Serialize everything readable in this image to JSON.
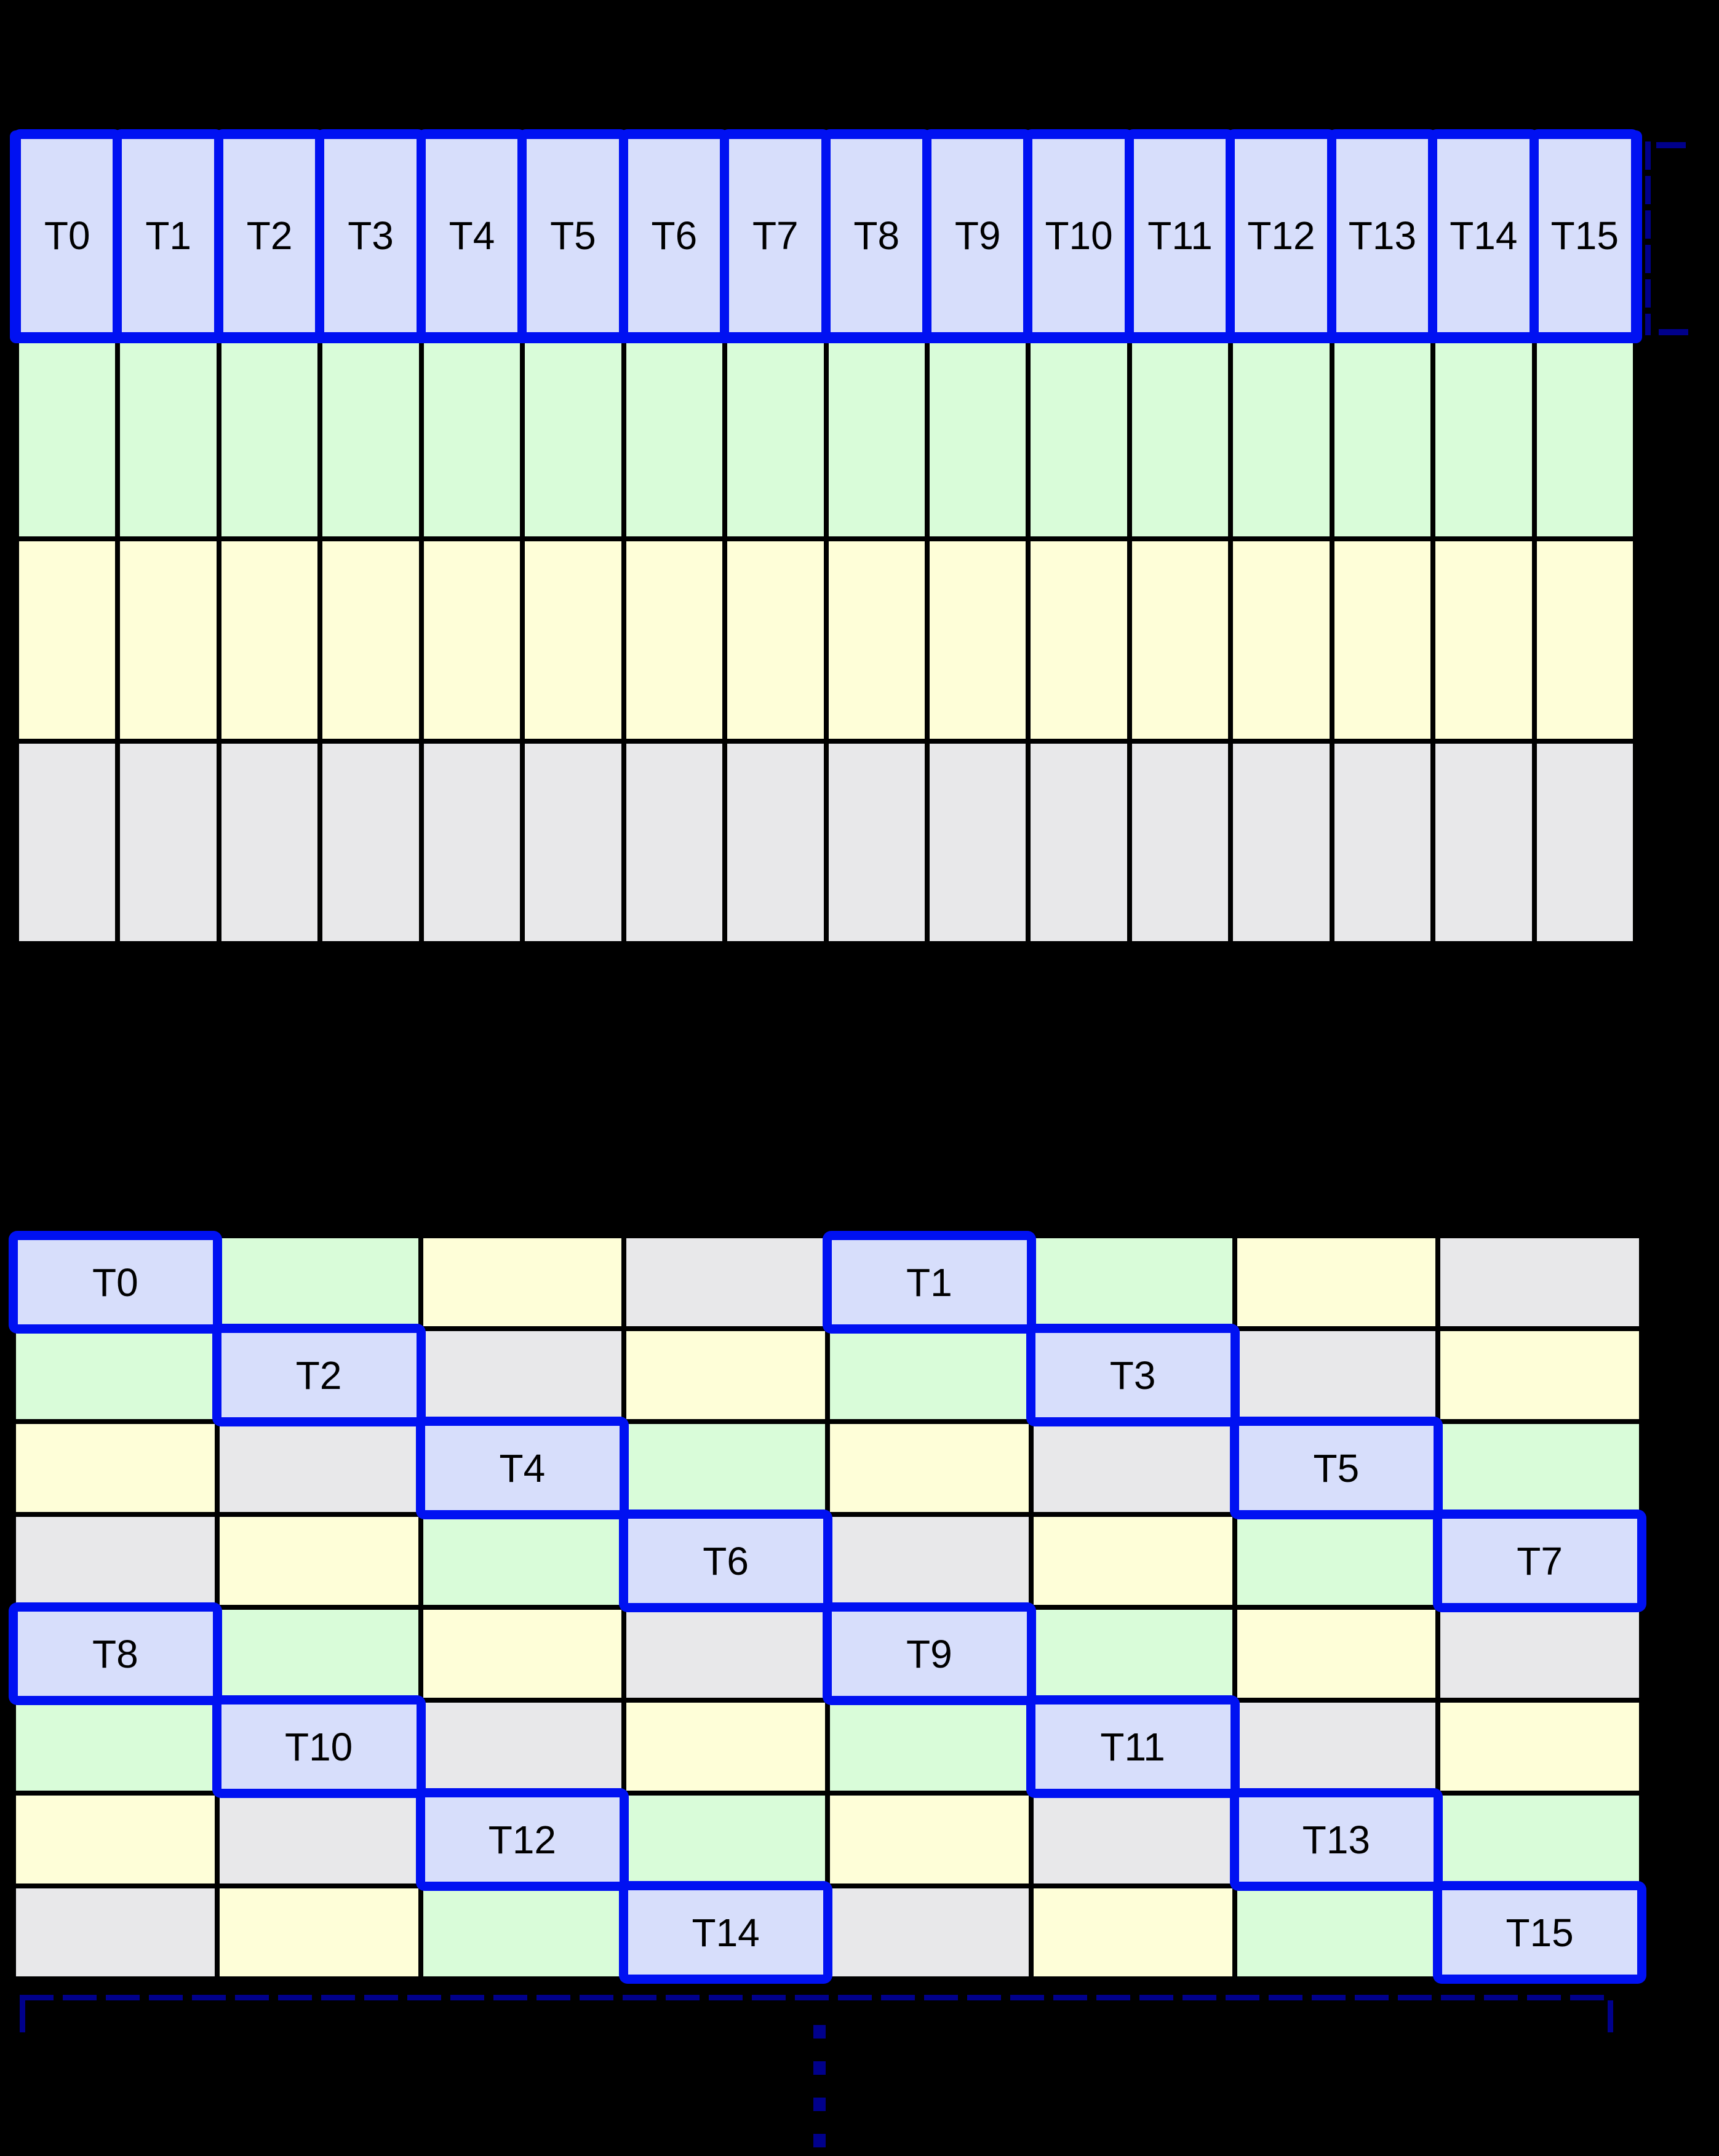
{
  "diagram": {
    "background": "#000000",
    "palette": {
      "blue": "#D7DEFB",
      "green": "#D9FCD9",
      "yellow": "#FEFED8",
      "gray": "#E8E8EA"
    },
    "accents": {
      "warp_border": "#0011F2",
      "bracket": "#00008B",
      "grid_line": "#000000",
      "label_color": "#000000"
    },
    "top_grid": {
      "columns": 16,
      "rows": 4,
      "threads": [
        "T0",
        "T1",
        "T2",
        "T3",
        "T4",
        "T5",
        "T6",
        "T7",
        "T8",
        "T9",
        "T10",
        "T11",
        "T12",
        "T13",
        "T14",
        "T15"
      ],
      "thread_row_color": "blue",
      "data_rows": [
        "green",
        "yellow",
        "gray"
      ]
    },
    "bottom_grid": {
      "columns": 8,
      "rows": [
        [
          {
            "color": "blue",
            "label": "T0"
          },
          {
            "color": "green"
          },
          {
            "color": "yellow"
          },
          {
            "color": "gray"
          },
          {
            "color": "blue",
            "label": "T1"
          },
          {
            "color": "green"
          },
          {
            "color": "yellow"
          },
          {
            "color": "gray"
          }
        ],
        [
          {
            "color": "green"
          },
          {
            "color": "blue",
            "label": "T2"
          },
          {
            "color": "gray"
          },
          {
            "color": "yellow"
          },
          {
            "color": "green"
          },
          {
            "color": "blue",
            "label": "T3"
          },
          {
            "color": "gray"
          },
          {
            "color": "yellow"
          }
        ],
        [
          {
            "color": "yellow"
          },
          {
            "color": "gray"
          },
          {
            "color": "blue",
            "label": "T4"
          },
          {
            "color": "green"
          },
          {
            "color": "yellow"
          },
          {
            "color": "gray"
          },
          {
            "color": "blue",
            "label": "T5"
          },
          {
            "color": "green"
          }
        ],
        [
          {
            "color": "gray"
          },
          {
            "color": "yellow"
          },
          {
            "color": "green"
          },
          {
            "color": "blue",
            "label": "T6"
          },
          {
            "color": "gray"
          },
          {
            "color": "yellow"
          },
          {
            "color": "green"
          },
          {
            "color": "blue",
            "label": "T7"
          }
        ],
        [
          {
            "color": "blue",
            "label": "T8"
          },
          {
            "color": "green"
          },
          {
            "color": "yellow"
          },
          {
            "color": "gray"
          },
          {
            "color": "blue",
            "label": "T9"
          },
          {
            "color": "green"
          },
          {
            "color": "yellow"
          },
          {
            "color": "gray"
          }
        ],
        [
          {
            "color": "green"
          },
          {
            "color": "blue",
            "label": "T10"
          },
          {
            "color": "gray"
          },
          {
            "color": "yellow"
          },
          {
            "color": "green"
          },
          {
            "color": "blue",
            "label": "T11"
          },
          {
            "color": "gray"
          },
          {
            "color": "yellow"
          }
        ],
        [
          {
            "color": "yellow"
          },
          {
            "color": "gray"
          },
          {
            "color": "blue",
            "label": "T12"
          },
          {
            "color": "green"
          },
          {
            "color": "yellow"
          },
          {
            "color": "gray"
          },
          {
            "color": "blue",
            "label": "T13"
          },
          {
            "color": "green"
          }
        ],
        [
          {
            "color": "gray"
          },
          {
            "color": "yellow"
          },
          {
            "color": "green"
          },
          {
            "color": "blue",
            "label": "T14"
          },
          {
            "color": "gray"
          },
          {
            "color": "yellow"
          },
          {
            "color": "green"
          },
          {
            "color": "blue",
            "label": "T15"
          }
        ]
      ]
    }
  }
}
